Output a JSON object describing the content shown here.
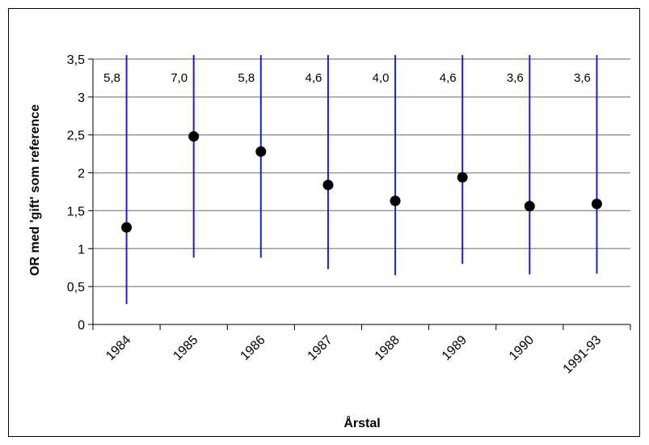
{
  "chart_data": {
    "type": "scatter",
    "title": "",
    "xlabel": "Årstal",
    "ylabel": "OR med 'gift' som reference",
    "ylim": [
      0,
      3.5
    ],
    "y_ticks": [
      "0",
      "0,5",
      "1",
      "1,5",
      "2",
      "2,5",
      "3",
      "3,5"
    ],
    "grid": true,
    "categories": [
      "1984",
      "1985",
      "1986",
      "1987",
      "1988",
      "1989",
      "1990",
      "1991-93"
    ],
    "values": [
      1.28,
      2.48,
      2.28,
      1.84,
      1.63,
      1.94,
      1.56,
      1.59
    ],
    "ci_lower": [
      0.27,
      0.88,
      0.88,
      0.73,
      0.65,
      0.8,
      0.66,
      0.67
    ],
    "ci_upper": [
      5.8,
      7.0,
      5.8,
      4.6,
      4.0,
      4.6,
      3.6,
      3.6
    ],
    "ci_upper_labels": [
      "5,8",
      "7,0",
      "5,8",
      "4,6",
      "4,0",
      "4,6",
      "3,6",
      "3,6"
    ],
    "colors": {
      "ci_line": "#1f1fc8",
      "point": "#000000",
      "grid": "#999999"
    }
  }
}
